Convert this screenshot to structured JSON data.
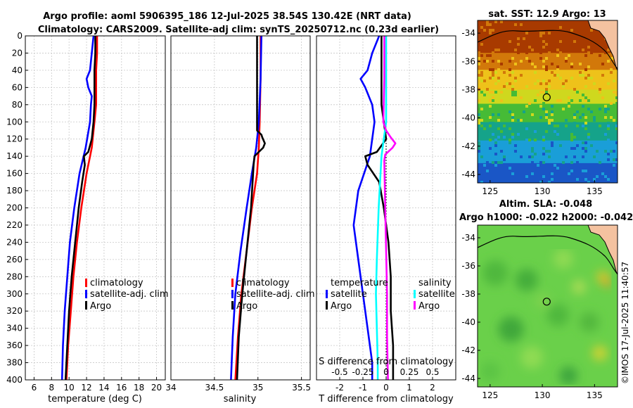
{
  "header": {
    "line1": "Argo profile: aoml 5906395_186 12-Jul-2025 38.54S 130.42E (NRT data)",
    "line2": "Climatology: CARS2009. Satellite-adj clim: synTS_20250712.nc (0.23d earlier)"
  },
  "watermark": "©IMOS 17-Jul-2025 11:40:57",
  "colors": {
    "climatology": "#ff0000",
    "satellite": "#0000ff",
    "argo": "#000000",
    "sat_salinity": "#00ffff",
    "argo_salinity": "#ff00ff",
    "grid": "#c8c8c8"
  },
  "chart_data": [
    {
      "type": "line",
      "name": "temperature-profile",
      "xlabel": "temperature (deg C)",
      "ylabel": "",
      "xlim": [
        5,
        21
      ],
      "ylim": [
        400,
        0
      ],
      "xticks": [
        6,
        8,
        10,
        12,
        14,
        16,
        18,
        20
      ],
      "yticks": [
        0,
        20,
        40,
        60,
        80,
        100,
        120,
        140,
        160,
        180,
        200,
        220,
        240,
        260,
        280,
        300,
        320,
        340,
        360,
        380,
        400
      ],
      "grid": true,
      "legend": [
        "climatology",
        "satellite-adj. clim",
        "Argo"
      ],
      "series": [
        {
          "name": "climatology",
          "color": "#ff0000",
          "depth": [
            0,
            20,
            40,
            60,
            80,
            100,
            130,
            160,
            200,
            240,
            280,
            320,
            360,
            400
          ],
          "values": [
            13.2,
            13.2,
            13.1,
            13.1,
            13.1,
            12.9,
            12.6,
            12.0,
            11.4,
            10.9,
            10.5,
            10.2,
            9.9,
            9.7
          ]
        },
        {
          "name": "satellite-adj. clim",
          "color": "#0000ff",
          "depth": [
            0,
            20,
            40,
            50,
            60,
            70,
            80,
            100,
            130,
            160,
            200,
            240,
            280,
            320,
            360,
            400
          ],
          "values": [
            12.8,
            12.6,
            12.4,
            12.0,
            12.2,
            12.6,
            12.5,
            12.4,
            11.9,
            11.2,
            10.6,
            10.1,
            9.8,
            9.5,
            9.3,
            9.2
          ]
        },
        {
          "name": "Argo",
          "color": "#000000",
          "depth": [
            0,
            20,
            40,
            60,
            80,
            100,
            120,
            135,
            140,
            150,
            170,
            200,
            240,
            280,
            320,
            360,
            400
          ],
          "values": [
            13.0,
            13.0,
            12.9,
            12.9,
            12.9,
            12.8,
            12.6,
            12.2,
            11.7,
            11.8,
            11.5,
            11.1,
            10.7,
            10.3,
            10.0,
            9.8,
            9.6
          ]
        }
      ]
    },
    {
      "type": "line",
      "name": "salinity-profile",
      "xlabel": "salinity",
      "xlim": [
        34,
        35.6
      ],
      "ylim": [
        400,
        0
      ],
      "xticks": [
        34,
        34.5,
        35,
        35.5
      ],
      "xtick_labels": [
        "34",
        "34.5",
        "35",
        "35.5"
      ],
      "grid": true,
      "legend": [
        "climatology",
        "satellite-adj. clim",
        "Argo"
      ],
      "series": [
        {
          "name": "climatology",
          "color": "#ff0000",
          "depth": [
            0,
            50,
            100,
            130,
            160,
            200,
            250,
            300,
            350,
            400
          ],
          "values": [
            35.03,
            35.03,
            35.02,
            35.01,
            34.99,
            34.93,
            34.87,
            34.81,
            34.77,
            34.74
          ]
        },
        {
          "name": "satellite-adj. clim",
          "color": "#0000ff",
          "depth": [
            0,
            50,
            100,
            130,
            160,
            200,
            250,
            300,
            350,
            400
          ],
          "values": [
            35.04,
            35.03,
            35.01,
            34.98,
            34.93,
            34.87,
            34.8,
            34.74,
            34.71,
            34.69
          ]
        },
        {
          "name": "Argo",
          "color": "#000000",
          "depth": [
            0,
            50,
            100,
            110,
            115,
            118,
            125,
            130,
            135,
            140,
            150,
            200,
            250,
            300,
            350,
            400
          ],
          "values": [
            34.99,
            34.99,
            34.99,
            34.99,
            35.04,
            35.05,
            35.08,
            35.06,
            35.01,
            34.96,
            34.95,
            34.92,
            34.87,
            34.82,
            34.78,
            34.76
          ]
        }
      ]
    },
    {
      "type": "line",
      "name": "difference-profile",
      "xlabel": "T difference from climatology",
      "top_xlabel": "S difference from climatology",
      "xlim": [
        -3,
        3
      ],
      "ylim": [
        400,
        0
      ],
      "xticks": [
        -2,
        -1,
        0,
        1,
        2
      ],
      "top_xticks": [
        -0.5,
        -0.25,
        0,
        0.25,
        0.5
      ],
      "top_xtick_labels": [
        "-0.5",
        "-0.25",
        "0",
        "0.25",
        "0.5"
      ],
      "grid": true,
      "legend_temperature": {
        "title": "temperature",
        "entries": [
          "satellite",
          "Argo"
        ]
      },
      "legend_salinity": {
        "title": "salinity",
        "entries": [
          "satellite",
          "Argo"
        ]
      },
      "series": [
        {
          "name": "T satellite",
          "color": "#0000ff",
          "depth": [
            0,
            20,
            40,
            50,
            60,
            80,
            100,
            140,
            180,
            220,
            260,
            300,
            340,
            380,
            400
          ],
          "values": [
            -0.3,
            -0.6,
            -0.8,
            -1.1,
            -0.9,
            -0.6,
            -0.5,
            -0.7,
            -1.2,
            -1.4,
            -1.2,
            -1.0,
            -0.8,
            -0.6,
            -0.6
          ]
        },
        {
          "name": "T Argo",
          "color": "#000000",
          "depth": [
            0,
            40,
            80,
            100,
            120,
            135,
            140,
            150,
            170,
            200,
            240,
            280,
            320,
            360,
            400
          ],
          "values": [
            -0.2,
            -0.2,
            -0.2,
            -0.1,
            0.0,
            -0.4,
            -0.9,
            -0.8,
            -0.3,
            -0.1,
            0.1,
            0.2,
            0.2,
            0.3,
            0.3
          ]
        },
        {
          "name": "S satellite",
          "color": "#00ffff",
          "depth": [
            0,
            50,
            100,
            140,
            200,
            260,
            300,
            340,
            380,
            400
          ],
          "values": [
            0.0,
            0.0,
            0.0,
            -0.05,
            -0.08,
            -0.1,
            -0.11,
            -0.1,
            -0.09,
            -0.09
          ]
        },
        {
          "name": "S Argo",
          "color": "#ff00ff",
          "depth": [
            0,
            50,
            100,
            110,
            118,
            125,
            130,
            138,
            145,
            200,
            250,
            300,
            350,
            400
          ],
          "values": [
            -0.02,
            -0.02,
            -0.03,
            0.0,
            0.05,
            0.1,
            0.07,
            -0.01,
            -0.02,
            -0.01,
            0.0,
            0.01,
            0.01,
            0.02
          ]
        }
      ]
    },
    {
      "type": "heatmap",
      "name": "sst-map",
      "title": "sat. SST: 12.9 Argo: 13",
      "xlim": [
        123.8,
        137.2
      ],
      "ylim": [
        -44.6,
        -33.1
      ],
      "xticks": [
        125,
        130,
        135
      ],
      "yticks": [
        -34,
        -36,
        -38,
        -40,
        -42,
        -44
      ],
      "argo_position": {
        "lon": 130.42,
        "lat": -38.54
      },
      "color_bands": [
        {
          "lat": -34.0,
          "color": "#a83a00"
        },
        {
          "lat": -35.4,
          "color": "#d2780a"
        },
        {
          "lat": -36.6,
          "color": "#eec21a"
        },
        {
          "lat": -38.0,
          "color": "#cfd81e"
        },
        {
          "lat": -39.0,
          "color": "#46bb36"
        },
        {
          "lat": -40.3,
          "color": "#15a38a"
        },
        {
          "lat": -41.6,
          "color": "#1a9ed8"
        },
        {
          "lat": -43.2,
          "color": "#1a56c6"
        }
      ]
    },
    {
      "type": "heatmap",
      "name": "sla-map",
      "title": "Altim. SLA: -0.048",
      "subtitle": "Argo h1000: -0.022 h2000: -0.042",
      "xlim": [
        123.8,
        137.2
      ],
      "ylim": [
        -44.6,
        -33.1
      ],
      "xticks": [
        125,
        130,
        135
      ],
      "yticks": [
        -34,
        -36,
        -38,
        -40,
        -42,
        -44
      ],
      "argo_position": {
        "lon": 130.42,
        "lat": -38.54
      },
      "base_color": "#6ad04a"
    }
  ]
}
